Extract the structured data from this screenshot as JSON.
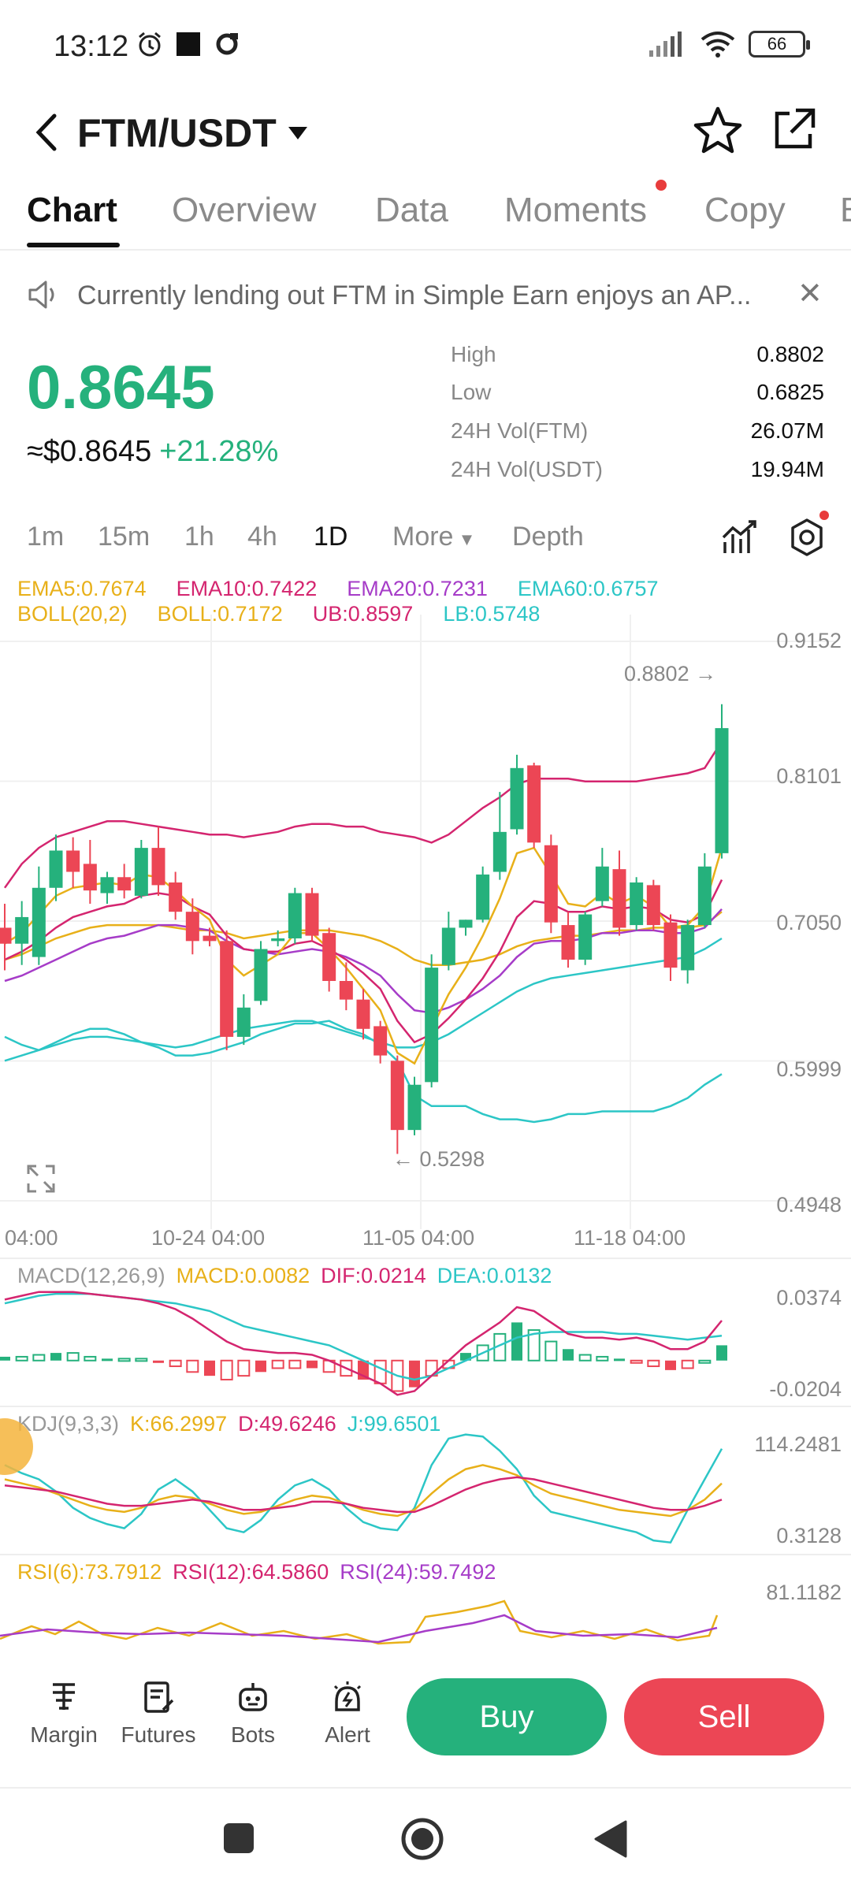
{
  "status_bar": {
    "time": "13:12",
    "battery": "66"
  },
  "header": {
    "title": "FTM/USDT"
  },
  "tabs": [
    {
      "label": "Chart"
    },
    {
      "label": "Overview"
    },
    {
      "label": "Data"
    },
    {
      "label": "Moments"
    },
    {
      "label": "Copy"
    },
    {
      "label": "B"
    }
  ],
  "notice": {
    "text": "Currently lending out FTM in Simple Earn enjoys an AP..."
  },
  "ticker": {
    "price": "0.8645",
    "fiat": "≈$0.8645",
    "change": "+21.28%",
    "stats": [
      {
        "label": "High",
        "value": "0.8802"
      },
      {
        "label": "Low",
        "value": "0.6825"
      },
      {
        "label": "24H Vol(FTM)",
        "value": "26.07M"
      },
      {
        "label": "24H Vol(USDT)",
        "value": "19.94M"
      }
    ]
  },
  "intervals": [
    "1m",
    "15m",
    "1h",
    "4h",
    "1D",
    "More",
    "Depth"
  ],
  "legend": {
    "row1": [
      "EMA5:0.7674",
      "EMA10:0.7422",
      "EMA20:0.7231",
      "EMA60:0.6757"
    ],
    "row2": [
      "BOLL(20,2)",
      "BOLL:0.7172",
      "UB:0.8597",
      "LB:0.5748"
    ]
  },
  "colors": {
    "up": "#25b17c",
    "down": "#ec4655",
    "ema5": "#e8b019",
    "ema10": "#d4256f",
    "ema20": "#a63cc8",
    "ema60": "#2cc6c6"
  },
  "chart_data": {
    "type": "candlestick",
    "y_axis_labels": [
      "0.9152",
      "0.8101",
      "0.7050",
      "0.5999",
      "0.4948"
    ],
    "x_axis_labels": [
      "04:00",
      "10-24 04:00",
      "11-05 04:00",
      "11-18 04:00"
    ],
    "ylim": [
      0.4948,
      0.9152
    ],
    "annotations": {
      "high": "0.8802 →",
      "low": "← 0.5298"
    },
    "candles": [
      {
        "o": 0.7,
        "h": 0.718,
        "l": 0.668,
        "c": 0.688
      },
      {
        "o": 0.688,
        "h": 0.72,
        "l": 0.672,
        "c": 0.708
      },
      {
        "o": 0.678,
        "h": 0.746,
        "l": 0.672,
        "c": 0.73
      },
      {
        "o": 0.73,
        "h": 0.77,
        "l": 0.72,
        "c": 0.758
      },
      {
        "o": 0.758,
        "h": 0.768,
        "l": 0.73,
        "c": 0.742
      },
      {
        "o": 0.748,
        "h": 0.766,
        "l": 0.718,
        "c": 0.728
      },
      {
        "o": 0.726,
        "h": 0.742,
        "l": 0.718,
        "c": 0.738
      },
      {
        "o": 0.738,
        "h": 0.748,
        "l": 0.722,
        "c": 0.728
      },
      {
        "o": 0.724,
        "h": 0.766,
        "l": 0.722,
        "c": 0.76
      },
      {
        "o": 0.76,
        "h": 0.776,
        "l": 0.724,
        "c": 0.732
      },
      {
        "o": 0.734,
        "h": 0.742,
        "l": 0.706,
        "c": 0.712
      },
      {
        "o": 0.712,
        "h": 0.722,
        "l": 0.68,
        "c": 0.69
      },
      {
        "o": 0.694,
        "h": 0.7,
        "l": 0.686,
        "c": 0.69
      },
      {
        "o": 0.69,
        "h": 0.698,
        "l": 0.608,
        "c": 0.618
      },
      {
        "o": 0.618,
        "h": 0.65,
        "l": 0.612,
        "c": 0.64
      },
      {
        "o": 0.645,
        "h": 0.69,
        "l": 0.642,
        "c": 0.684
      },
      {
        "o": 0.69,
        "h": 0.698,
        "l": 0.686,
        "c": 0.692
      },
      {
        "o": 0.692,
        "h": 0.73,
        "l": 0.688,
        "c": 0.726
      },
      {
        "o": 0.726,
        "h": 0.73,
        "l": 0.69,
        "c": 0.694
      },
      {
        "o": 0.696,
        "h": 0.7,
        "l": 0.652,
        "c": 0.66
      },
      {
        "o": 0.66,
        "h": 0.674,
        "l": 0.638,
        "c": 0.646
      },
      {
        "o": 0.646,
        "h": 0.654,
        "l": 0.616,
        "c": 0.624
      },
      {
        "o": 0.626,
        "h": 0.63,
        "l": 0.598,
        "c": 0.604
      },
      {
        "o": 0.6,
        "h": 0.604,
        "l": 0.53,
        "c": 0.548
      },
      {
        "o": 0.548,
        "h": 0.588,
        "l": 0.544,
        "c": 0.582
      },
      {
        "o": 0.584,
        "h": 0.68,
        "l": 0.58,
        "c": 0.67
      },
      {
        "o": 0.672,
        "h": 0.712,
        "l": 0.668,
        "c": 0.7
      },
      {
        "o": 0.7,
        "h": 0.706,
        "l": 0.694,
        "c": 0.706
      },
      {
        "o": 0.706,
        "h": 0.746,
        "l": 0.704,
        "c": 0.74
      },
      {
        "o": 0.742,
        "h": 0.802,
        "l": 0.736,
        "c": 0.772
      },
      {
        "o": 0.774,
        "h": 0.83,
        "l": 0.77,
        "c": 0.82
      },
      {
        "o": 0.822,
        "h": 0.824,
        "l": 0.76,
        "c": 0.764
      },
      {
        "o": 0.762,
        "h": 0.77,
        "l": 0.696,
        "c": 0.704
      },
      {
        "o": 0.702,
        "h": 0.712,
        "l": 0.67,
        "c": 0.676
      },
      {
        "o": 0.676,
        "h": 0.712,
        "l": 0.672,
        "c": 0.71
      },
      {
        "o": 0.72,
        "h": 0.76,
        "l": 0.716,
        "c": 0.746
      },
      {
        "o": 0.744,
        "h": 0.758,
        "l": 0.694,
        "c": 0.7
      },
      {
        "o": 0.702,
        "h": 0.738,
        "l": 0.698,
        "c": 0.734
      },
      {
        "o": 0.732,
        "h": 0.736,
        "l": 0.698,
        "c": 0.702
      },
      {
        "o": 0.704,
        "h": 0.71,
        "l": 0.66,
        "c": 0.67
      },
      {
        "o": 0.668,
        "h": 0.706,
        "l": 0.658,
        "c": 0.702
      },
      {
        "o": 0.702,
        "h": 0.756,
        "l": 0.7,
        "c": 0.746
      },
      {
        "o": 0.756,
        "h": 0.868,
        "l": 0.752,
        "c": 0.85
      }
    ],
    "overlays": {
      "boll_ub": [
        0.73,
        0.748,
        0.76,
        0.768,
        0.772,
        0.776,
        0.78,
        0.78,
        0.778,
        0.776,
        0.774,
        0.772,
        0.77,
        0.77,
        0.768,
        0.77,
        0.772,
        0.776,
        0.778,
        0.778,
        0.776,
        0.776,
        0.772,
        0.77,
        0.768,
        0.764,
        0.77,
        0.78,
        0.79,
        0.798,
        0.808,
        0.812,
        0.812,
        0.812,
        0.81,
        0.81,
        0.81,
        0.81,
        0.812,
        0.814,
        0.816,
        0.82,
        0.84
      ],
      "boll_lb": [
        0.618,
        0.612,
        0.608,
        0.614,
        0.62,
        0.624,
        0.624,
        0.62,
        0.614,
        0.61,
        0.604,
        0.604,
        0.606,
        0.61,
        0.614,
        0.62,
        0.624,
        0.628,
        0.628,
        0.63,
        0.624,
        0.62,
        0.612,
        0.6,
        0.574,
        0.566,
        0.566,
        0.566,
        0.56,
        0.556,
        0.556,
        0.554,
        0.556,
        0.56,
        0.56,
        0.562,
        0.562,
        0.562,
        0.562,
        0.566,
        0.572,
        0.582,
        0.59
      ],
      "ema5": [
        0.688,
        0.696,
        0.71,
        0.724,
        0.73,
        0.732,
        0.734,
        0.732,
        0.74,
        0.738,
        0.728,
        0.716,
        0.706,
        0.676,
        0.664,
        0.672,
        0.68,
        0.696,
        0.696,
        0.684,
        0.67,
        0.654,
        0.638,
        0.606,
        0.598,
        0.624,
        0.65,
        0.67,
        0.694,
        0.722,
        0.756,
        0.76,
        0.74,
        0.718,
        0.716,
        0.726,
        0.718,
        0.724,
        0.716,
        0.7,
        0.702,
        0.716,
        0.76
      ],
      "ema10": [
        0.676,
        0.682,
        0.69,
        0.7,
        0.708,
        0.712,
        0.716,
        0.718,
        0.724,
        0.726,
        0.724,
        0.716,
        0.71,
        0.694,
        0.684,
        0.682,
        0.682,
        0.688,
        0.69,
        0.684,
        0.676,
        0.666,
        0.654,
        0.63,
        0.614,
        0.62,
        0.632,
        0.646,
        0.662,
        0.682,
        0.708,
        0.72,
        0.718,
        0.712,
        0.712,
        0.716,
        0.714,
        0.716,
        0.714,
        0.706,
        0.704,
        0.71,
        0.736
      ],
      "ema20": [
        0.66,
        0.664,
        0.67,
        0.676,
        0.682,
        0.688,
        0.692,
        0.694,
        0.698,
        0.702,
        0.702,
        0.7,
        0.698,
        0.69,
        0.684,
        0.682,
        0.68,
        0.682,
        0.684,
        0.682,
        0.678,
        0.672,
        0.664,
        0.65,
        0.638,
        0.636,
        0.64,
        0.646,
        0.654,
        0.664,
        0.678,
        0.688,
        0.69,
        0.69,
        0.692,
        0.696,
        0.696,
        0.698,
        0.698,
        0.696,
        0.696,
        0.7,
        0.714
      ],
      "ema60": [
        0.6,
        0.604,
        0.608,
        0.612,
        0.616,
        0.618,
        0.618,
        0.616,
        0.614,
        0.612,
        0.61,
        0.612,
        0.616,
        0.62,
        0.624,
        0.626,
        0.628,
        0.63,
        0.63,
        0.626,
        0.622,
        0.618,
        0.614,
        0.61,
        0.61,
        0.614,
        0.62,
        0.628,
        0.636,
        0.644,
        0.652,
        0.658,
        0.662,
        0.664,
        0.666,
        0.668,
        0.67,
        0.672,
        0.674,
        0.676,
        0.678,
        0.684,
        0.692
      ],
      "boll_mid": [
        0.676,
        0.68,
        0.686,
        0.692,
        0.696,
        0.7,
        0.702,
        0.702,
        0.702,
        0.702,
        0.7,
        0.698,
        0.698,
        0.696,
        0.692,
        0.694,
        0.696,
        0.698,
        0.698,
        0.698,
        0.696,
        0.694,
        0.69,
        0.684,
        0.676,
        0.672,
        0.672,
        0.674,
        0.676,
        0.68,
        0.686,
        0.69,
        0.692,
        0.694,
        0.694,
        0.696,
        0.698,
        0.698,
        0.7,
        0.7,
        0.7,
        0.702,
        0.712
      ]
    },
    "macd": {
      "legend": [
        "MACD(12,26,9)",
        "MACD:0.0082",
        "DIF:0.0214",
        "DEA:0.0132"
      ],
      "y_labels": [
        "0.0374",
        "-0.0204"
      ],
      "hist": [
        0.002,
        0.002,
        0.003,
        0.004,
        0.004,
        0.002,
        0.001,
        0.001,
        0.001,
        -0.001,
        -0.003,
        -0.006,
        -0.008,
        -0.01,
        -0.008,
        -0.006,
        -0.004,
        -0.004,
        -0.004,
        -0.006,
        -0.008,
        -0.01,
        -0.012,
        -0.016,
        -0.014,
        -0.008,
        -0.004,
        0.004,
        0.008,
        0.014,
        0.02,
        0.016,
        0.01,
        0.006,
        0.003,
        0.002,
        0.001,
        -0.001,
        -0.003,
        -0.005,
        -0.004,
        0.0,
        0.008
      ],
      "dif": [
        0.032,
        0.034,
        0.036,
        0.036,
        0.036,
        0.035,
        0.034,
        0.033,
        0.032,
        0.03,
        0.027,
        0.022,
        0.016,
        0.01,
        0.006,
        0.005,
        0.004,
        0.004,
        0.003,
        0.0,
        -0.004,
        -0.008,
        -0.012,
        -0.018,
        -0.016,
        -0.008,
        0.0,
        0.008,
        0.014,
        0.02,
        0.028,
        0.026,
        0.02,
        0.014,
        0.012,
        0.012,
        0.011,
        0.012,
        0.01,
        0.006,
        0.006,
        0.01,
        0.021
      ],
      "dea": [
        0.03,
        0.032,
        0.034,
        0.035,
        0.035,
        0.035,
        0.034,
        0.033,
        0.032,
        0.031,
        0.03,
        0.028,
        0.026,
        0.022,
        0.018,
        0.016,
        0.014,
        0.012,
        0.01,
        0.008,
        0.004,
        0.0,
        -0.004,
        -0.008,
        -0.01,
        -0.008,
        -0.004,
        0.0,
        0.004,
        0.008,
        0.012,
        0.014,
        0.015,
        0.015,
        0.015,
        0.015,
        0.014,
        0.014,
        0.013,
        0.012,
        0.011,
        0.012,
        0.013
      ]
    },
    "kdj": {
      "legend": [
        "KDJ(9,3,3)",
        "K:66.2997",
        "D:49.6246",
        "J:99.6501"
      ],
      "y_labels": [
        "114.2481",
        "0.3128"
      ],
      "k": [
        70,
        66,
        62,
        56,
        50,
        44,
        40,
        38,
        42,
        50,
        54,
        52,
        46,
        40,
        36,
        38,
        44,
        50,
        54,
        52,
        46,
        40,
        36,
        34,
        40,
        56,
        70,
        80,
        84,
        80,
        74,
        64,
        56,
        52,
        48,
        44,
        40,
        38,
        36,
        34,
        40,
        50,
        66
      ],
      "d": [
        64,
        62,
        60,
        58,
        54,
        50,
        46,
        44,
        44,
        46,
        48,
        50,
        48,
        44,
        40,
        40,
        42,
        44,
        48,
        48,
        46,
        42,
        40,
        38,
        38,
        44,
        52,
        60,
        66,
        70,
        72,
        70,
        66,
        62,
        58,
        54,
        50,
        46,
        42,
        40,
        40,
        44,
        50
      ],
      "j": [
        84,
        76,
        70,
        58,
        42,
        32,
        26,
        22,
        36,
        60,
        70,
        58,
        40,
        22,
        18,
        30,
        50,
        64,
        70,
        60,
        42,
        28,
        22,
        20,
        42,
        84,
        110,
        114,
        112,
        98,
        80,
        54,
        38,
        34,
        30,
        26,
        22,
        18,
        10,
        8,
        40,
        70,
        100
      ]
    },
    "rsi": {
      "legend": [
        "RSI(6):73.7912",
        "RSI(12):64.5860",
        "RSI(24):59.7492"
      ],
      "y_labels": [
        "81.1182"
      ]
    }
  },
  "bottom_nav": [
    {
      "label": "Margin"
    },
    {
      "label": "Futures"
    },
    {
      "label": "Bots"
    },
    {
      "label": "Alert"
    }
  ],
  "actions": {
    "buy": "Buy",
    "sell": "Sell"
  }
}
